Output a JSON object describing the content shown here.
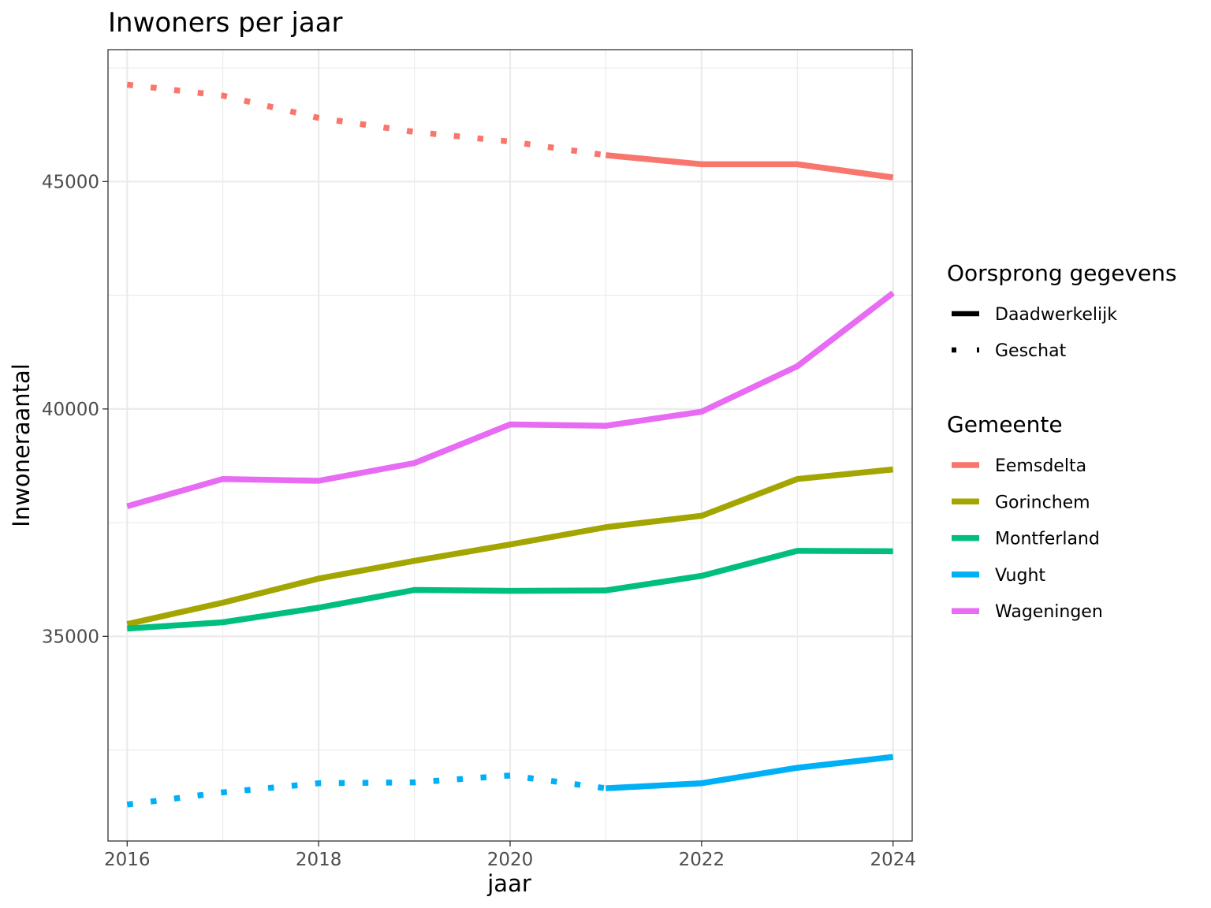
{
  "chart_data": {
    "type": "line",
    "title": "Inwoners per jaar",
    "xlabel": "jaar",
    "ylabel": "Inwoneraantal",
    "xlim": [
      2015.8,
      2024.2
    ],
    "ylim": [
      30500,
      47900
    ],
    "x_ticks": [
      2016,
      2018,
      2020,
      2022,
      2024
    ],
    "x_tick_labels": [
      "2016",
      "2018",
      "2020",
      "2022",
      "2024"
    ],
    "y_ticks": [
      35000,
      40000,
      45000
    ],
    "y_tick_labels": [
      "35000",
      "40000",
      "45000"
    ],
    "x_minor": [
      2017,
      2019,
      2021,
      2023
    ],
    "y_minor": [
      32500,
      37500,
      42500,
      47500
    ],
    "grid": true,
    "legend_position": "right",
    "linetype_legend": {
      "title": "Oorsprong gegevens",
      "items": [
        {
          "label": "Daadwerkelijk",
          "style": "solid"
        },
        {
          "label": "Geschat",
          "style": "dotted"
        }
      ]
    },
    "color_legend": {
      "title": "Gemeente",
      "items": [
        {
          "label": "Eemsdelta",
          "color": "#F8766D"
        },
        {
          "label": "Gorinchem",
          "color": "#A3A500"
        },
        {
          "label": "Montferland",
          "color": "#00BF7D"
        },
        {
          "label": "Vught",
          "color": "#00B0F6"
        },
        {
          "label": "Wageningen",
          "color": "#E76BF3"
        }
      ]
    },
    "series": [
      {
        "name": "Eemsdelta",
        "color": "#F8766D",
        "estimated": {
          "x": [
            2016,
            2017,
            2018,
            2019,
            2020,
            2021
          ],
          "y": [
            47130,
            46890,
            46400,
            46090,
            45880,
            45580
          ]
        },
        "actual": {
          "x": [
            2021,
            2022,
            2023,
            2024
          ],
          "y": [
            45580,
            45380,
            45380,
            45090
          ]
        }
      },
      {
        "name": "Gorinchem",
        "color": "#A3A500",
        "estimated": null,
        "actual": {
          "x": [
            2016,
            2017,
            2018,
            2019,
            2020,
            2021,
            2022,
            2023,
            2024
          ],
          "y": [
            35270,
            35740,
            36270,
            36660,
            37020,
            37400,
            37650,
            38460,
            38670
          ]
        }
      },
      {
        "name": "Montferland",
        "color": "#00BF7D",
        "estimated": null,
        "actual": {
          "x": [
            2016,
            2017,
            2018,
            2019,
            2020,
            2021,
            2022,
            2023,
            2024
          ],
          "y": [
            35170,
            35310,
            35630,
            36020,
            36000,
            36010,
            36330,
            36880,
            36870
          ]
        }
      },
      {
        "name": "Vught",
        "color": "#00B0F6",
        "estimated": {
          "x": [
            2016,
            2017,
            2018,
            2019,
            2020,
            2021
          ],
          "y": [
            31300,
            31570,
            31770,
            31790,
            31940,
            31660
          ]
        },
        "actual": {
          "x": [
            2021,
            2022,
            2023,
            2024
          ],
          "y": [
            31660,
            31770,
            32110,
            32350
          ]
        }
      },
      {
        "name": "Wageningen",
        "color": "#E76BF3",
        "estimated": null,
        "actual": {
          "x": [
            2016,
            2017,
            2018,
            2019,
            2020,
            2021,
            2022,
            2023,
            2024
          ],
          "y": [
            37860,
            38460,
            38420,
            38810,
            39660,
            39630,
            39940,
            40940,
            42550
          ]
        }
      }
    ]
  }
}
